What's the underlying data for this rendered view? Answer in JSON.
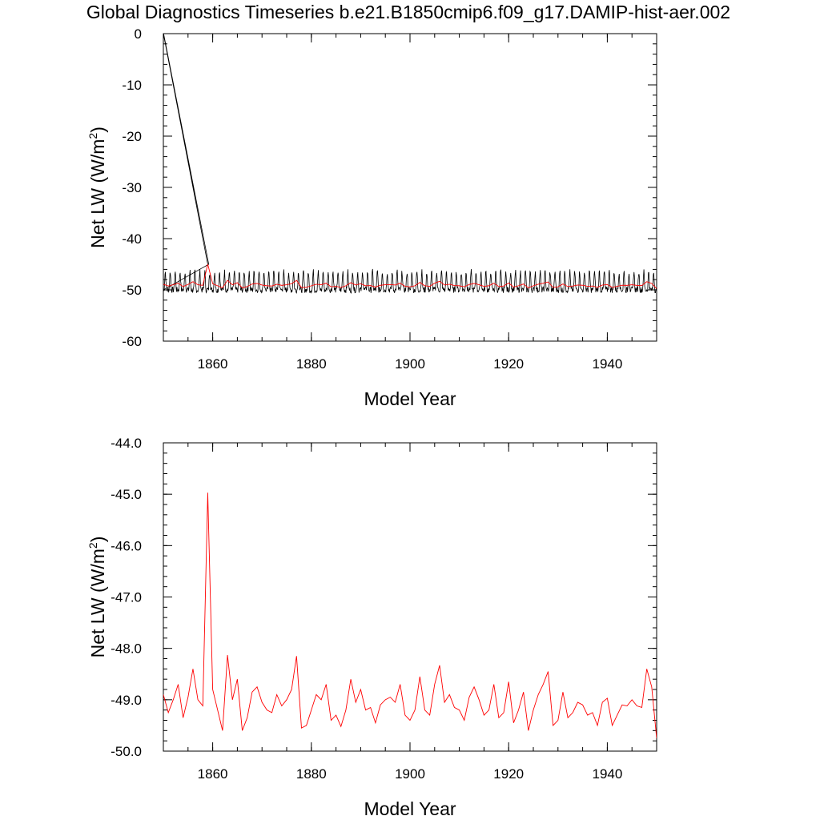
{
  "title": "Global Diagnostics Timeseries b.e21.B1850cmip6.f09_g17.DAMIP-hist-aer.002",
  "chart_data": [
    {
      "type": "line",
      "xlabel": "Model Year",
      "ylabel": "Net LW (W/m",
      "ylabel_sup": "2",
      "ylabel_close": ")",
      "xlim": [
        1850,
        1950
      ],
      "ylim": [
        -60,
        0
      ],
      "x_ticks": [
        1860,
        1880,
        1900,
        1920,
        1940
      ],
      "x_tick_labels": [
        "1860",
        "1880",
        "1900",
        "1920",
        "1940"
      ],
      "y_ticks": [
        0,
        -10,
        -20,
        -30,
        -40,
        -50,
        -60
      ],
      "y_tick_labels": [
        "0",
        "-10",
        "-20",
        "-30",
        "-40",
        "-50",
        "-60"
      ],
      "grid": false,
      "series": [
        {
          "color": "#000000",
          "kind": "monthly",
          "start": [
            1850.0,
            0.0
          ],
          "spike": [
            1859.0,
            -45.0
          ],
          "baseline": -49.1,
          "seasonal_amplitude": 2.1
        },
        {
          "color": "#ff0000",
          "kind": "annual",
          "x": [
            1850,
            1851,
            1852,
            1853,
            1854,
            1855,
            1856,
            1857,
            1858,
            1859,
            1860,
            1861,
            1862,
            1863,
            1864,
            1865,
            1866,
            1867,
            1868,
            1869,
            1870,
            1871,
            1872,
            1873,
            1874,
            1875,
            1876,
            1877,
            1878,
            1879,
            1880,
            1881,
            1882,
            1883,
            1884,
            1885,
            1886,
            1887,
            1888,
            1889,
            1890,
            1891,
            1892,
            1893,
            1894,
            1895,
            1896,
            1897,
            1898,
            1899,
            1900,
            1901,
            1902,
            1903,
            1904,
            1905,
            1906,
            1907,
            1908,
            1909,
            1910,
            1911,
            1912,
            1913,
            1914,
            1915,
            1916,
            1917,
            1918,
            1919,
            1920,
            1921,
            1922,
            1923,
            1924,
            1925,
            1926,
            1927,
            1928,
            1929,
            1930,
            1931,
            1932,
            1933,
            1934,
            1935,
            1936,
            1937,
            1938,
            1939,
            1940,
            1941,
            1942,
            1943,
            1944,
            1945,
            1946,
            1947,
            1948,
            1949,
            1950
          ],
          "values": [
            -48.9,
            -49.25,
            -49.0,
            -48.7,
            -49.35,
            -48.95,
            -48.4,
            -49.0,
            -49.12,
            -44.97,
            -48.8,
            -49.2,
            -49.6,
            -48.13,
            -49.0,
            -48.6,
            -49.6,
            -49.35,
            -48.85,
            -48.75,
            -49.05,
            -49.2,
            -49.25,
            -48.9,
            -49.12,
            -49.0,
            -48.8,
            -48.15,
            -49.55,
            -49.5,
            -49.2,
            -48.9,
            -49.0,
            -48.7,
            -49.4,
            -49.3,
            -49.52,
            -49.2,
            -48.6,
            -49.05,
            -48.8,
            -49.2,
            -49.15,
            -49.45,
            -49.1,
            -49.0,
            -48.95,
            -49.05,
            -48.7,
            -49.3,
            -49.4,
            -49.2,
            -48.55,
            -49.2,
            -49.3,
            -48.7,
            -48.33,
            -49.05,
            -48.9,
            -49.15,
            -49.2,
            -49.4,
            -48.95,
            -48.75,
            -49.0,
            -49.3,
            -49.2,
            -48.7,
            -49.35,
            -49.25,
            -48.65,
            -49.45,
            -49.2,
            -48.85,
            -49.6,
            -49.2,
            -48.9,
            -48.7,
            -48.45,
            -49.5,
            -49.4,
            -48.85,
            -49.35,
            -49.25,
            -49.05,
            -49.1,
            -49.3,
            -49.25,
            -49.5,
            -49.05,
            -48.97,
            -49.5,
            -49.3,
            -49.1,
            -49.12,
            -49.0,
            -49.12,
            -49.15,
            -48.4,
            -48.75,
            -49.75
          ]
        }
      ]
    },
    {
      "type": "line",
      "xlabel": "Model Year",
      "ylabel": "Net LW (W/m",
      "ylabel_sup": "2",
      "ylabel_close": ")",
      "xlim": [
        1850,
        1950
      ],
      "ylim": [
        -50,
        -44
      ],
      "x_ticks": [
        1860,
        1880,
        1900,
        1920,
        1940
      ],
      "x_tick_labels": [
        "1860",
        "1880",
        "1900",
        "1920",
        "1940"
      ],
      "y_ticks": [
        -44,
        -45,
        -46,
        -47,
        -48,
        -49,
        -50
      ],
      "y_tick_labels": [
        "-44.0",
        "-45.0",
        "-46.0",
        "-47.0",
        "-48.0",
        "-49.0",
        "-50.0"
      ],
      "grid": false,
      "series": [
        {
          "color": "#ff0000",
          "kind": "annual",
          "x": [
            1850,
            1851,
            1852,
            1853,
            1854,
            1855,
            1856,
            1857,
            1858,
            1859,
            1860,
            1861,
            1862,
            1863,
            1864,
            1865,
            1866,
            1867,
            1868,
            1869,
            1870,
            1871,
            1872,
            1873,
            1874,
            1875,
            1876,
            1877,
            1878,
            1879,
            1880,
            1881,
            1882,
            1883,
            1884,
            1885,
            1886,
            1887,
            1888,
            1889,
            1890,
            1891,
            1892,
            1893,
            1894,
            1895,
            1896,
            1897,
            1898,
            1899,
            1900,
            1901,
            1902,
            1903,
            1904,
            1905,
            1906,
            1907,
            1908,
            1909,
            1910,
            1911,
            1912,
            1913,
            1914,
            1915,
            1916,
            1917,
            1918,
            1919,
            1920,
            1921,
            1922,
            1923,
            1924,
            1925,
            1926,
            1927,
            1928,
            1929,
            1930,
            1931,
            1932,
            1933,
            1934,
            1935,
            1936,
            1937,
            1938,
            1939,
            1940,
            1941,
            1942,
            1943,
            1944,
            1945,
            1946,
            1947,
            1948,
            1949,
            1950
          ],
          "values": [
            -48.9,
            -49.25,
            -49.0,
            -48.7,
            -49.35,
            -48.95,
            -48.4,
            -49.0,
            -49.12,
            -44.97,
            -48.8,
            -49.2,
            -49.6,
            -48.13,
            -49.0,
            -48.6,
            -49.6,
            -49.35,
            -48.85,
            -48.75,
            -49.05,
            -49.2,
            -49.25,
            -48.9,
            -49.12,
            -49.0,
            -48.8,
            -48.15,
            -49.55,
            -49.5,
            -49.2,
            -48.9,
            -49.0,
            -48.7,
            -49.4,
            -49.3,
            -49.52,
            -49.2,
            -48.6,
            -49.05,
            -48.8,
            -49.2,
            -49.15,
            -49.45,
            -49.1,
            -49.0,
            -48.95,
            -49.05,
            -48.7,
            -49.3,
            -49.4,
            -49.2,
            -48.55,
            -49.2,
            -49.3,
            -48.7,
            -48.33,
            -49.05,
            -48.9,
            -49.15,
            -49.2,
            -49.4,
            -48.95,
            -48.75,
            -49.0,
            -49.3,
            -49.2,
            -48.7,
            -49.35,
            -49.25,
            -48.65,
            -49.45,
            -49.2,
            -48.85,
            -49.6,
            -49.2,
            -48.9,
            -48.7,
            -48.45,
            -49.5,
            -49.4,
            -48.85,
            -49.35,
            -49.25,
            -49.05,
            -49.1,
            -49.3,
            -49.25,
            -49.5,
            -49.05,
            -48.97,
            -49.5,
            -49.3,
            -49.1,
            -49.12,
            -49.0,
            -49.12,
            -49.15,
            -48.4,
            -48.75,
            -49.75
          ]
        }
      ]
    }
  ]
}
